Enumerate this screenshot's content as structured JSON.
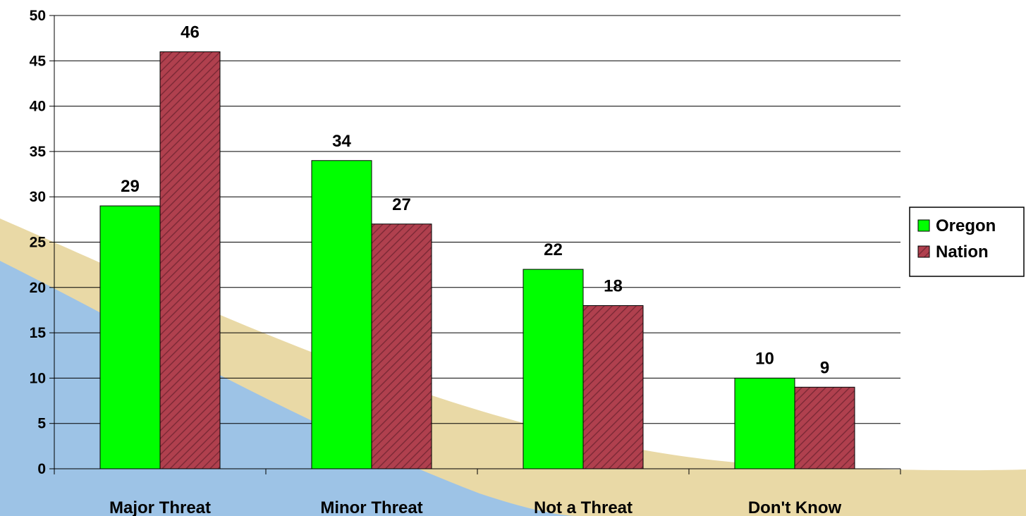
{
  "chart_data": {
    "type": "bar",
    "categories": [
      "Major Threat",
      "Minor Threat",
      "Not a Threat",
      "Don't Know"
    ],
    "series": [
      {
        "name": "Oregon",
        "values": [
          29,
          34,
          22,
          10
        ],
        "color": "#00FF00"
      },
      {
        "name": "Nation",
        "values": [
          46,
          27,
          18,
          9
        ],
        "color": "#B0404E"
      }
    ],
    "ylim": [
      0,
      50
    ],
    "yticks": [
      0,
      5,
      10,
      15,
      20,
      25,
      30,
      35,
      40,
      45,
      50
    ],
    "grid": true,
    "legend_position": "right",
    "title": "",
    "xlabel": "",
    "ylabel": ""
  },
  "background": {
    "blue": "#9DC3E6",
    "tan": "#E9D9A6"
  }
}
